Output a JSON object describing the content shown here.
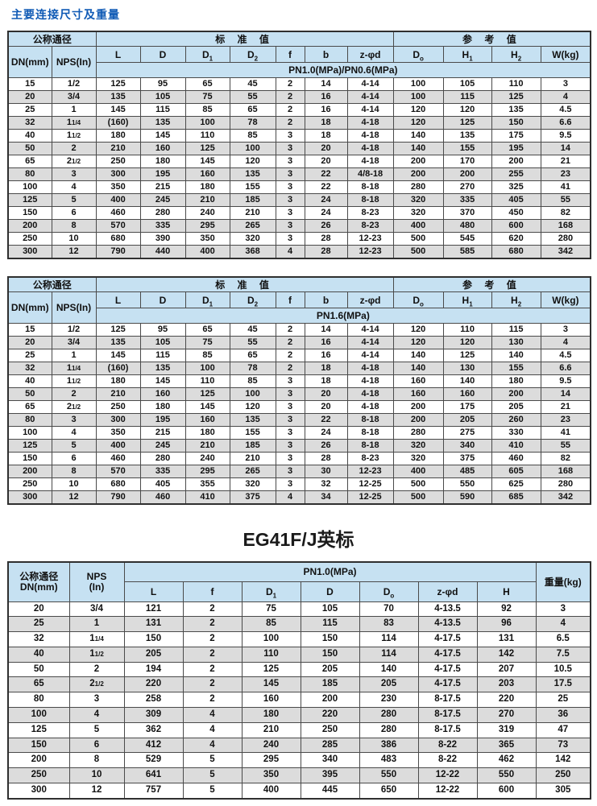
{
  "page": {
    "title": "主要连接尺寸及重量"
  },
  "colors": {
    "title": "#0f5ab5",
    "header_bg": "#c6e1f2",
    "zebra": "#dcdcdc",
    "border": "#4a4a4a"
  },
  "table1": {
    "header": {
      "group_size": "公称通径",
      "group_std": "标 准 值",
      "group_ref": "参 考 值",
      "dn": "DN(mm)",
      "nps": "NPS(In)",
      "cols": [
        {
          "t": "L"
        },
        {
          "t": "D"
        },
        {
          "t": "D",
          "s": "1"
        },
        {
          "t": "D",
          "s": "2"
        },
        {
          "t": "f"
        },
        {
          "t": "b"
        },
        {
          "t": "z-φd"
        },
        {
          "t": "D",
          "s": "o"
        },
        {
          "t": "H",
          "s": "1"
        },
        {
          "t": "H",
          "s": "2"
        },
        {
          "t": "W(kg)"
        }
      ],
      "pn": "PN1.0(MPa)/PN0.6(MPa)"
    },
    "rows": [
      [
        "15",
        "1/2",
        "125",
        "95",
        "65",
        "45",
        "2",
        "14",
        "4-14",
        "100",
        "105",
        "110",
        "3"
      ],
      [
        "20",
        "3/4",
        "135",
        "105",
        "75",
        "55",
        "2",
        "16",
        "4-14",
        "100",
        "115",
        "125",
        "4"
      ],
      [
        "25",
        "1",
        "145",
        "115",
        "85",
        "65",
        "2",
        "16",
        "4-14",
        "120",
        "120",
        "135",
        "4.5"
      ],
      [
        "32",
        "1 1/4",
        "(160)",
        "135",
        "100",
        "78",
        "2",
        "18",
        "4-18",
        "120",
        "125",
        "150",
        "6.6"
      ],
      [
        "40",
        "1 1/2",
        "180",
        "145",
        "110",
        "85",
        "3",
        "18",
        "4-18",
        "140",
        "135",
        "175",
        "9.5"
      ],
      [
        "50",
        "2",
        "210",
        "160",
        "125",
        "100",
        "3",
        "20",
        "4-18",
        "140",
        "155",
        "195",
        "14"
      ],
      [
        "65",
        "2 1/2",
        "250",
        "180",
        "145",
        "120",
        "3",
        "20",
        "4-18",
        "200",
        "170",
        "200",
        "21"
      ],
      [
        "80",
        "3",
        "300",
        "195",
        "160",
        "135",
        "3",
        "22",
        "4/8-18",
        "200",
        "200",
        "255",
        "23"
      ],
      [
        "100",
        "4",
        "350",
        "215",
        "180",
        "155",
        "3",
        "22",
        "8-18",
        "280",
        "270",
        "325",
        "41"
      ],
      [
        "125",
        "5",
        "400",
        "245",
        "210",
        "185",
        "3",
        "24",
        "8-18",
        "320",
        "335",
        "405",
        "55"
      ],
      [
        "150",
        "6",
        "460",
        "280",
        "240",
        "210",
        "3",
        "24",
        "8-23",
        "320",
        "370",
        "450",
        "82"
      ],
      [
        "200",
        "8",
        "570",
        "335",
        "295",
        "265",
        "3",
        "26",
        "8-23",
        "400",
        "480",
        "600",
        "168"
      ],
      [
        "250",
        "10",
        "680",
        "390",
        "350",
        "320",
        "3",
        "28",
        "12-23",
        "500",
        "545",
        "620",
        "280"
      ],
      [
        "300",
        "12",
        "790",
        "440",
        "400",
        "368",
        "4",
        "28",
        "12-23",
        "500",
        "585",
        "680",
        "342"
      ]
    ]
  },
  "table2": {
    "header": {
      "group_size": "公称通径",
      "group_std": "标 准 值",
      "group_ref": "参 考 值",
      "dn": "DN(mm)",
      "nps": "NPS(In)",
      "cols": [
        {
          "t": "L"
        },
        {
          "t": "D"
        },
        {
          "t": "D",
          "s": "1"
        },
        {
          "t": "D",
          "s": "2"
        },
        {
          "t": "f"
        },
        {
          "t": "b"
        },
        {
          "t": "z-φd"
        },
        {
          "t": "D",
          "s": "o"
        },
        {
          "t": "H",
          "s": "1"
        },
        {
          "t": "H",
          "s": "2"
        },
        {
          "t": "W(kg)"
        }
      ],
      "pn": "PN1.6(MPa)"
    },
    "rows": [
      [
        "15",
        "1/2",
        "125",
        "95",
        "65",
        "45",
        "2",
        "14",
        "4-14",
        "120",
        "110",
        "115",
        "3"
      ],
      [
        "20",
        "3/4",
        "135",
        "105",
        "75",
        "55",
        "2",
        "16",
        "4-14",
        "120",
        "120",
        "130",
        "4"
      ],
      [
        "25",
        "1",
        "145",
        "115",
        "85",
        "65",
        "2",
        "16",
        "4-14",
        "140",
        "125",
        "140",
        "4.5"
      ],
      [
        "32",
        "1 1/4",
        "(160)",
        "135",
        "100",
        "78",
        "2",
        "18",
        "4-18",
        "140",
        "130",
        "155",
        "6.6"
      ],
      [
        "40",
        "1 1/2",
        "180",
        "145",
        "110",
        "85",
        "3",
        "18",
        "4-18",
        "160",
        "140",
        "180",
        "9.5"
      ],
      [
        "50",
        "2",
        "210",
        "160",
        "125",
        "100",
        "3",
        "20",
        "4-18",
        "160",
        "160",
        "200",
        "14"
      ],
      [
        "65",
        "2 1/2",
        "250",
        "180",
        "145",
        "120",
        "3",
        "20",
        "4-18",
        "200",
        "175",
        "205",
        "21"
      ],
      [
        "80",
        "3",
        "300",
        "195",
        "160",
        "135",
        "3",
        "22",
        "8-18",
        "200",
        "205",
        "260",
        "23"
      ],
      [
        "100",
        "4",
        "350",
        "215",
        "180",
        "155",
        "3",
        "24",
        "8-18",
        "280",
        "275",
        "330",
        "41"
      ],
      [
        "125",
        "5",
        "400",
        "245",
        "210",
        "185",
        "3",
        "26",
        "8-18",
        "320",
        "340",
        "410",
        "55"
      ],
      [
        "150",
        "6",
        "460",
        "280",
        "240",
        "210",
        "3",
        "28",
        "8-23",
        "320",
        "375",
        "460",
        "82"
      ],
      [
        "200",
        "8",
        "570",
        "335",
        "295",
        "265",
        "3",
        "30",
        "12-23",
        "400",
        "485",
        "605",
        "168"
      ],
      [
        "250",
        "10",
        "680",
        "405",
        "355",
        "320",
        "3",
        "32",
        "12-25",
        "500",
        "550",
        "625",
        "280"
      ],
      [
        "300",
        "12",
        "790",
        "460",
        "410",
        "375",
        "4",
        "34",
        "12-25",
        "500",
        "590",
        "685",
        "342"
      ]
    ]
  },
  "section2": {
    "title": "EG41F/J英标"
  },
  "table3": {
    "header": {
      "dn1": "公称通径",
      "dn2": "DN(mm)",
      "nps1": "NPS",
      "nps2": "(In)",
      "pn": "PN1.0(MPa)",
      "cols": [
        {
          "t": "L"
        },
        {
          "t": "f"
        },
        {
          "t": "D",
          "s": "1"
        },
        {
          "t": "D"
        },
        {
          "t": "D",
          "s": "o"
        },
        {
          "t": "z-φd"
        },
        {
          "t": "H"
        }
      ],
      "weight": "重量(kg)"
    },
    "rows": [
      [
        "20",
        "3/4",
        "121",
        "2",
        "75",
        "105",
        "70",
        "4-13.5",
        "92",
        "3"
      ],
      [
        "25",
        "1",
        "131",
        "2",
        "85",
        "115",
        "83",
        "4-13.5",
        "96",
        "4"
      ],
      [
        "32",
        "1 1/4",
        "150",
        "2",
        "100",
        "150",
        "114",
        "4-17.5",
        "131",
        "6.5"
      ],
      [
        "40",
        "1 1/2",
        "205",
        "2",
        "110",
        "150",
        "114",
        "4-17.5",
        "142",
        "7.5"
      ],
      [
        "50",
        "2",
        "194",
        "2",
        "125",
        "205",
        "140",
        "4-17.5",
        "207",
        "10.5"
      ],
      [
        "65",
        "2 1/2",
        "220",
        "2",
        "145",
        "185",
        "205",
        "4-17.5",
        "203",
        "17.5"
      ],
      [
        "80",
        "3",
        "258",
        "2",
        "160",
        "200",
        "230",
        "8-17.5",
        "220",
        "25"
      ],
      [
        "100",
        "4",
        "309",
        "4",
        "180",
        "220",
        "280",
        "8-17.5",
        "270",
        "36"
      ],
      [
        "125",
        "5",
        "362",
        "4",
        "210",
        "250",
        "280",
        "8-17.5",
        "319",
        "47"
      ],
      [
        "150",
        "6",
        "412",
        "4",
        "240",
        "285",
        "386",
        "8-22",
        "365",
        "73"
      ],
      [
        "200",
        "8",
        "529",
        "5",
        "295",
        "340",
        "483",
        "8-22",
        "462",
        "142"
      ],
      [
        "250",
        "10",
        "641",
        "5",
        "350",
        "395",
        "550",
        "12-22",
        "550",
        "250"
      ],
      [
        "300",
        "12",
        "757",
        "5",
        "400",
        "445",
        "650",
        "12-22",
        "600",
        "305"
      ]
    ]
  }
}
